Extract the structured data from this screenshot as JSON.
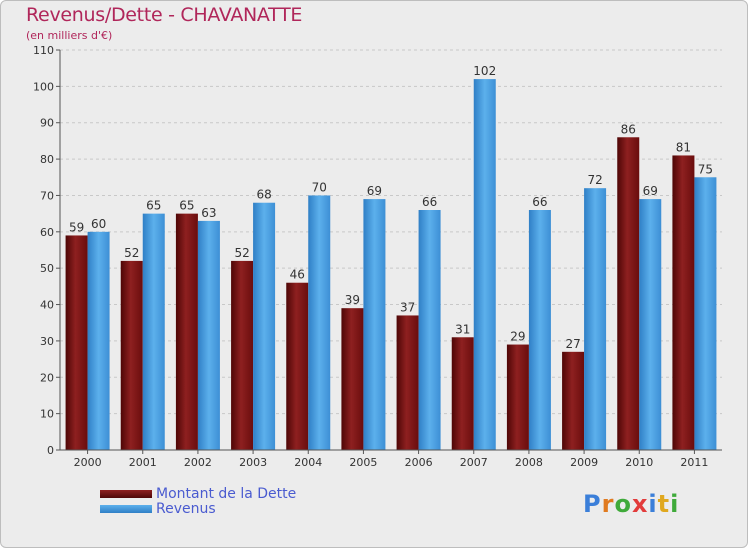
{
  "header": {
    "title": "Revenus/Dette - CHAVANATTE",
    "subtitle": "(en milliers d'€)"
  },
  "colors": {
    "title": "#b0265a",
    "debt": "#7a1010",
    "revenue": "#4d9fdf",
    "legend_text": "#4a5bd0"
  },
  "logo": {
    "letters": [
      {
        "ch": "P",
        "color": "#3b7fd9"
      },
      {
        "ch": "r",
        "color": "#e07a1f"
      },
      {
        "ch": "o",
        "color": "#3faa3a"
      },
      {
        "ch": "x",
        "color": "#e23b3b"
      },
      {
        "ch": "i",
        "color": "#3b7fd9"
      },
      {
        "ch": "t",
        "color": "#e0a81f"
      },
      {
        "ch": "i",
        "color": "#3faa3a"
      }
    ]
  },
  "chart_data": {
    "type": "bar",
    "title": "Revenus/Dette - CHAVANATTE",
    "subtitle": "(en milliers d'€)",
    "categories": [
      "2000",
      "2001",
      "2002",
      "2003",
      "2004",
      "2005",
      "2006",
      "2007",
      "2008",
      "2009",
      "2010",
      "2011"
    ],
    "series": [
      {
        "name": "Montant de la Dette",
        "color": "#7a1010",
        "values": [
          59,
          52,
          65,
          52,
          46,
          39,
          37,
          31,
          29,
          27,
          86,
          81
        ]
      },
      {
        "name": "Revenus",
        "color": "#4d9fdf",
        "values": [
          60,
          65,
          63,
          68,
          70,
          69,
          66,
          102,
          66,
          72,
          69,
          75
        ]
      }
    ],
    "ylim": [
      0,
      110
    ],
    "yticks": [
      0,
      10,
      20,
      30,
      40,
      50,
      60,
      70,
      80,
      90,
      100,
      110
    ],
    "grid": true,
    "legend_position": "bottom-left"
  }
}
